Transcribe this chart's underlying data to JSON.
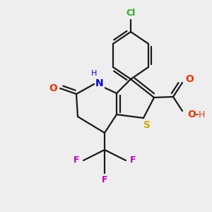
{
  "background_color": "#eeeeee",
  "bond_color": "#1a1a1a",
  "atom_colors": {
    "S": "#ccaa00",
    "N": "#0000ee",
    "O": "#ee3300",
    "Cl": "#22aa22",
    "F": "#bb00bb"
  },
  "figsize": [
    3.0,
    3.0
  ],
  "dpi": 100
}
